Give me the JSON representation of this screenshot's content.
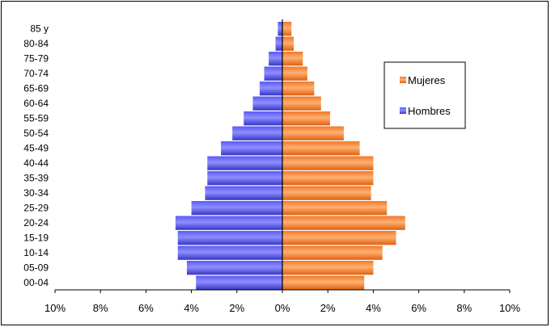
{
  "chart_data": {
    "type": "bar",
    "orientation": "horizontal",
    "layout": "population-pyramid",
    "categories": [
      "00-04",
      "05-09",
      "10-14",
      "15-19",
      "20-24",
      "25-29",
      "30-34",
      "35-39",
      "40-44",
      "45-49",
      "50-54",
      "55-59",
      "60-64",
      "65-69",
      "70-74",
      "75-79",
      "80-84",
      "85 y"
    ],
    "series": [
      {
        "name": "Hombres",
        "color": "#3d3de0",
        "side": "left",
        "values": [
          3.8,
          4.2,
          4.6,
          4.6,
          4.7,
          4.0,
          3.4,
          3.3,
          3.3,
          2.7,
          2.2,
          1.7,
          1.3,
          1.0,
          0.8,
          0.6,
          0.3,
          0.2
        ]
      },
      {
        "name": "Mujeres",
        "color": "#f07a22",
        "side": "right",
        "values": [
          3.6,
          4.0,
          4.4,
          5.0,
          5.4,
          4.6,
          3.9,
          4.0,
          4.0,
          3.4,
          2.7,
          2.1,
          1.7,
          1.4,
          1.1,
          0.9,
          0.5,
          0.4
        ]
      }
    ],
    "xlim": [
      -10,
      10
    ],
    "x_ticks": [
      "10%",
      "8%",
      "6%",
      "4%",
      "2%",
      "0%",
      "2%",
      "4%",
      "6%",
      "8%",
      "10%"
    ],
    "legend_position": "right",
    "legend": [
      "Mujeres",
      "Hombres"
    ],
    "grid": false
  }
}
